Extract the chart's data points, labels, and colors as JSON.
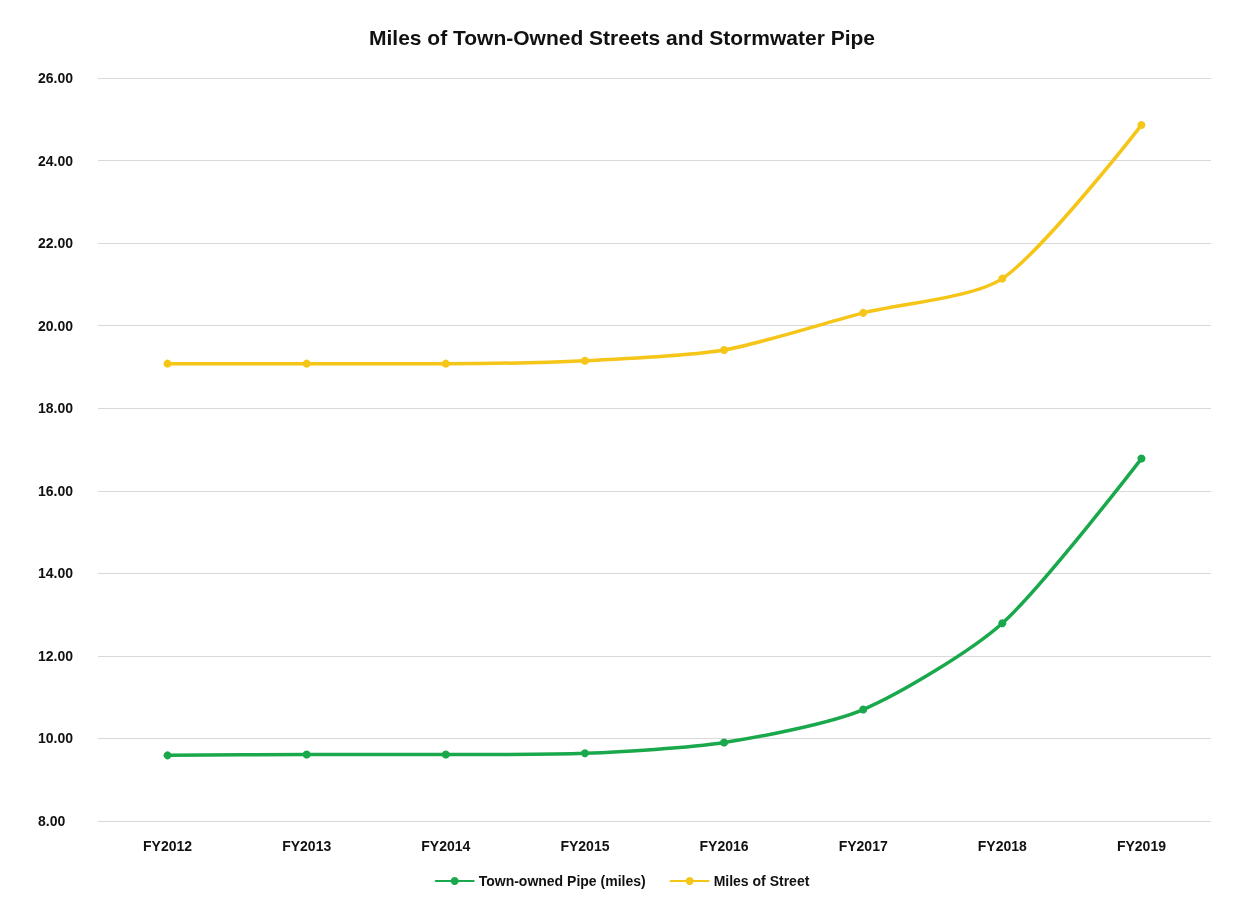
{
  "chart_data": {
    "type": "line",
    "title": "Miles of Town-Owned Streets and Stormwater Pipe",
    "categories": [
      "FY2012",
      "FY2013",
      "FY2014",
      "FY2015",
      "FY2016",
      "FY2017",
      "FY2018",
      "FY2019"
    ],
    "series": [
      {
        "name": "Town-owned Pipe (miles)",
        "color": "#1aa84c",
        "values": [
          9.59,
          9.61,
          9.61,
          9.64,
          9.9,
          10.7,
          12.79,
          16.78
        ]
      },
      {
        "name": "Miles of Street",
        "color": "#f5c518",
        "values": [
          19.08,
          19.08,
          19.08,
          19.15,
          19.41,
          20.31,
          21.14,
          24.86
        ]
      }
    ],
    "ylim": [
      8,
      26
    ],
    "yticks": [
      {
        "value": 8,
        "label": "8.00"
      },
      {
        "value": 10,
        "label": "10.00"
      },
      {
        "value": 12,
        "label": "12.00"
      },
      {
        "value": 14,
        "label": "14.00"
      },
      {
        "value": 16,
        "label": "16.00"
      },
      {
        "value": 18,
        "label": "18.00"
      },
      {
        "value": 20,
        "label": "20.00"
      },
      {
        "value": 22,
        "label": "22.00"
      },
      {
        "value": 24,
        "label": "24.00"
      },
      {
        "value": 26,
        "label": "26.00"
      }
    ],
    "grid": "y",
    "legend": "bottom",
    "marker": "circle",
    "line_style": "solid"
  }
}
